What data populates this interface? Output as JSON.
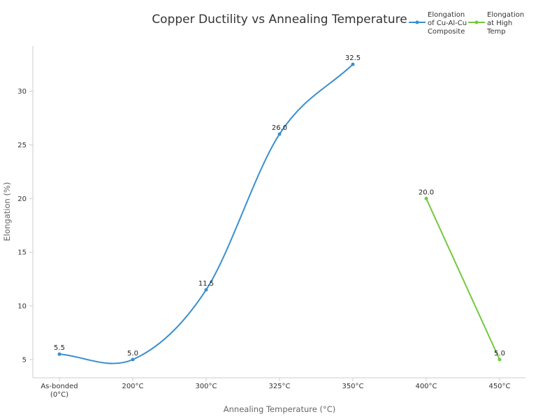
{
  "chart_data": {
    "type": "line",
    "title": "Copper Ductility vs Annealing Temperature",
    "xlabel": "Annealing Temperature (°C)",
    "ylabel": "Elongation (%)",
    "categories": [
      [
        "As-bonded",
        "(0°C)"
      ],
      [
        "200°C"
      ],
      [
        "300°C"
      ],
      [
        "325°C"
      ],
      [
        "350°C"
      ],
      [
        "400°C"
      ],
      [
        "450°C"
      ]
    ],
    "yticks": [
      5,
      10,
      15,
      20,
      25,
      30
    ],
    "ylim": [
      3.3,
      34.2
    ],
    "grid": false,
    "legend_position": "top-right",
    "series": [
      {
        "name": [
          "Elongation",
          "of Cu-Al-Cu",
          "Composite"
        ],
        "color": "#3a8fcd",
        "points": [
          [
            0,
            5.5
          ],
          [
            1,
            5.0
          ],
          [
            2,
            11.5
          ],
          [
            3,
            26.0
          ],
          [
            4,
            32.5
          ]
        ],
        "labels": [
          "5.5",
          "5.0",
          "11.5",
          "26.0",
          "32.5"
        ],
        "smooth": true
      },
      {
        "name": [
          "Elongation",
          "at High",
          "Temp"
        ],
        "color": "#72c93e",
        "points": [
          [
            5,
            20.0
          ],
          [
            6,
            5.0
          ]
        ],
        "labels": [
          "20.0",
          "5.0"
        ],
        "smooth": false
      }
    ]
  }
}
